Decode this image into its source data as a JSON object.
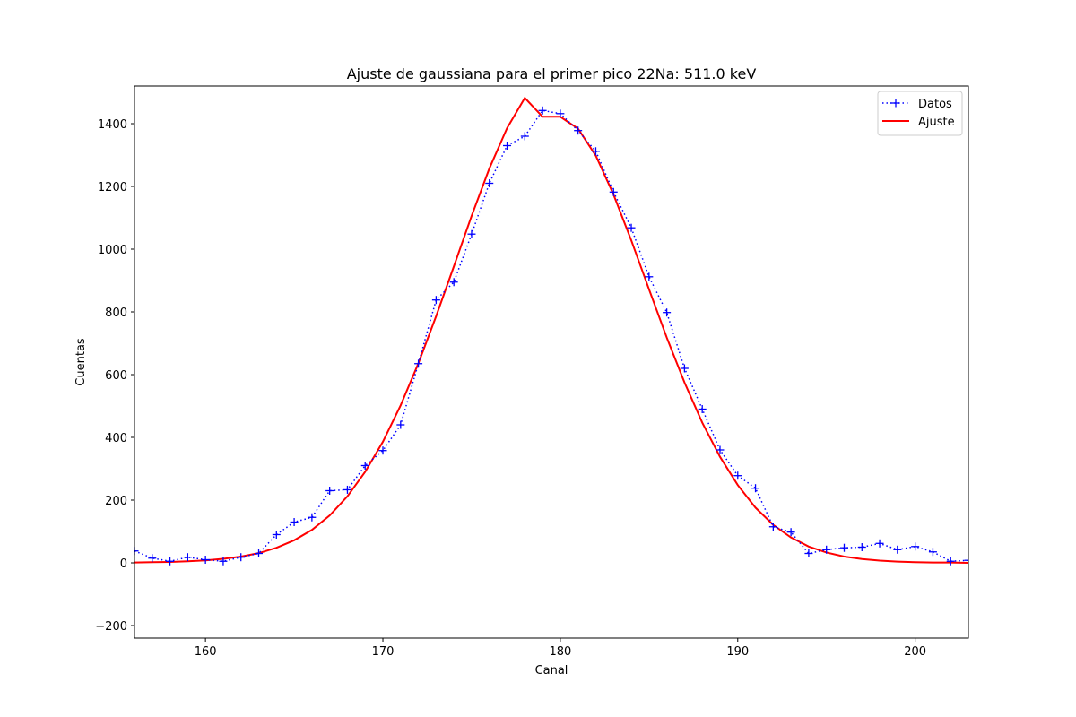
{
  "chart_data": {
    "type": "line",
    "title": "Ajuste de gaussiana para el primer pico 22Na: 511.0  keV",
    "xlabel": "Canal",
    "ylabel": "Cuentas",
    "xlim": [
      156,
      203
    ],
    "ylim": [
      -240,
      1520
    ],
    "xticks": [
      160,
      170,
      180,
      190,
      200
    ],
    "yticks": [
      -200,
      0,
      200,
      400,
      600,
      800,
      1000,
      1200,
      1400
    ],
    "grid": false,
    "legend_position": "top-right",
    "series": [
      {
        "name": "Datos",
        "style": "dotted-plus",
        "color": "#0000ff",
        "x": [
          156,
          157,
          158,
          159,
          160,
          161,
          162,
          163,
          164,
          165,
          166,
          167,
          168,
          169,
          170,
          171,
          172,
          173,
          174,
          175,
          176,
          177,
          178,
          179,
          180,
          181,
          182,
          183,
          184,
          185,
          186,
          187,
          188,
          189,
          190,
          191,
          192,
          193,
          194,
          195,
          196,
          197,
          198,
          199,
          200,
          201,
          202,
          203
        ],
        "y": [
          38,
          15,
          5,
          18,
          10,
          5,
          18,
          30,
          90,
          130,
          145,
          230,
          233,
          310,
          358,
          440,
          635,
          838,
          895,
          1048,
          1210,
          1330,
          1360,
          1442,
          1432,
          1378,
          1312,
          1182,
          1068,
          912,
          798,
          620,
          490,
          360,
          278,
          238,
          115,
          98,
          30,
          42,
          48,
          50,
          62,
          42,
          52,
          35,
          5,
          8
        ]
      },
      {
        "name": "Ajuste",
        "style": "solid",
        "color": "#ff0000",
        "x": [
          156,
          157,
          158,
          159,
          160,
          161,
          162,
          163,
          164,
          165,
          166,
          167,
          168,
          169,
          170,
          171,
          172,
          173,
          174,
          175,
          176,
          177,
          178,
          179,
          180,
          181,
          182,
          183,
          184,
          185,
          186,
          187,
          188,
          189,
          190,
          191,
          192,
          193,
          194,
          195,
          196,
          197,
          198,
          199,
          200,
          201,
          202,
          203
        ],
        "y": [
          1,
          2,
          3,
          5,
          8,
          13,
          20,
          31,
          48,
          72,
          105,
          151,
          212,
          290,
          386,
          502,
          636,
          786,
          945,
          1106,
          1257,
          1386,
          1482,
          1422,
          1422,
          1384,
          1298,
          1174,
          1028,
          872,
          718,
          575,
          447,
          338,
          248,
          176,
          121,
          81,
          52,
          33,
          20,
          12,
          7,
          4,
          2,
          1,
          1,
          0
        ]
      }
    ]
  },
  "colors": {
    "data": "#0000ff",
    "fit": "#ff0000"
  }
}
